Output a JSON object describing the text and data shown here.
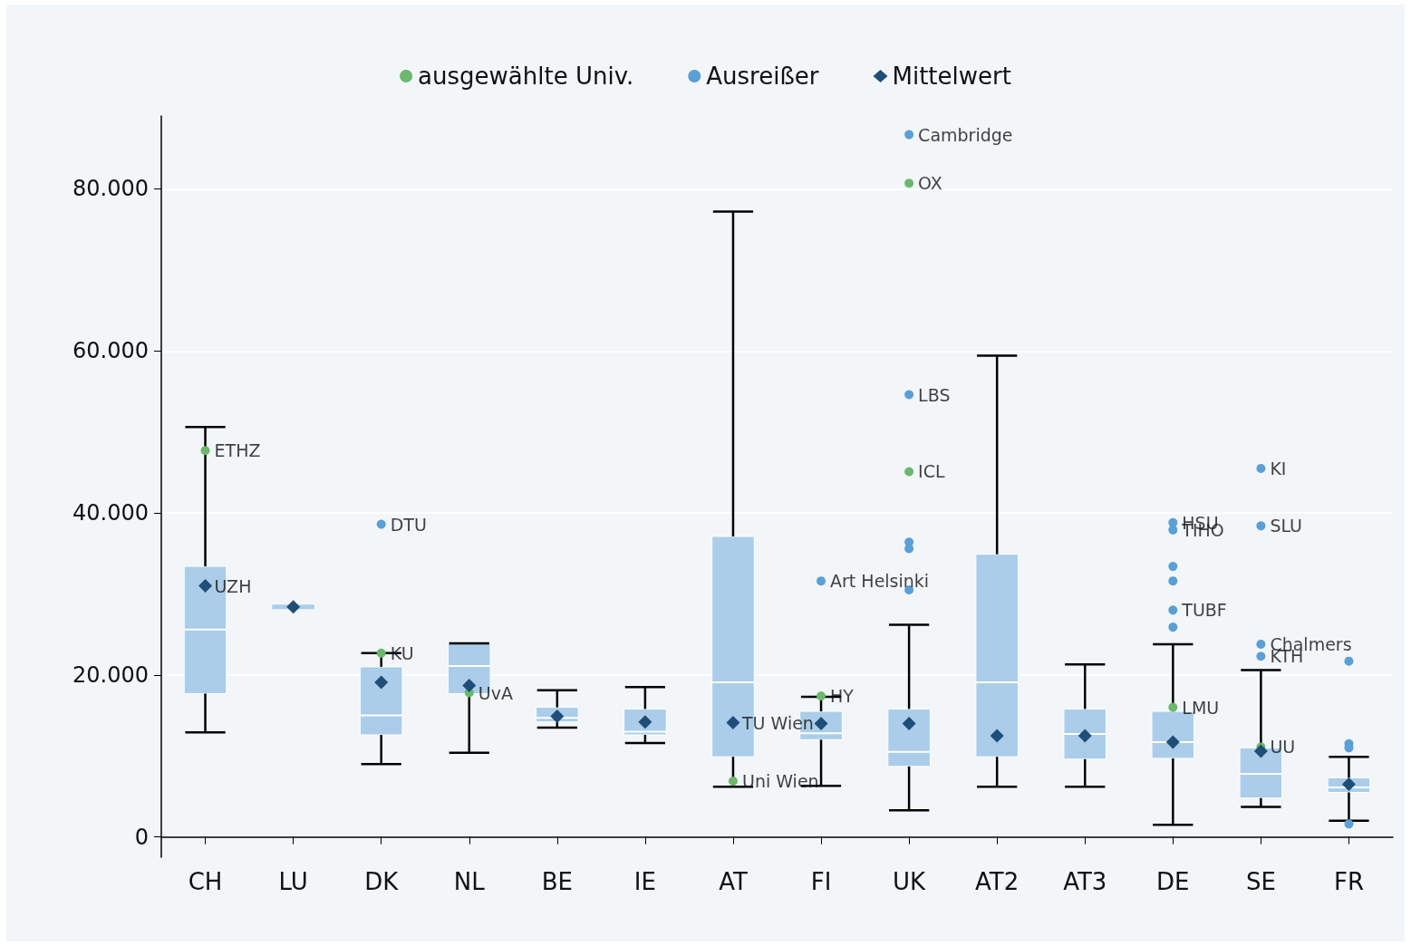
{
  "chart_data": {
    "type": "box",
    "categories": [
      "CH",
      "LU",
      "DK",
      "NL",
      "BE",
      "IE",
      "AT",
      "FI",
      "UK",
      "AT2",
      "AT3",
      "DE",
      "SE",
      "FR"
    ],
    "ylim": [
      -2500,
      89000
    ],
    "yticks": [
      0,
      {
        "value": 20000,
        "label": "20.000"
      },
      {
        "value": 40000,
        "label": "40.000"
      },
      {
        "value": 60000,
        "label": "60.000"
      },
      {
        "value": 80000,
        "label": "80.000"
      }
    ],
    "grid": "y",
    "legend": "top",
    "series": [
      {
        "type": "box",
        "color": "#abcde9",
        "boxes": [
          {
            "low": 12900,
            "q1": 17700,
            "median": 25600,
            "q3": 33400,
            "high": 50600
          },
          {
            "low": 28400,
            "q1": 28400,
            "median": 28400,
            "q3": 28400,
            "high": 28400
          },
          {
            "low": 9000,
            "q1": 12600,
            "median": 15000,
            "q3": 21000,
            "high": 22700
          },
          {
            "low": 10400,
            "q1": 17700,
            "median": 21100,
            "q3": 23900,
            "high": 23900
          },
          {
            "low": 13500,
            "q1": 14200,
            "median": 14700,
            "q3": 16000,
            "high": 18100
          },
          {
            "low": 11600,
            "q1": 12600,
            "median": 13000,
            "q3": 15800,
            "high": 18500
          },
          {
            "low": 6200,
            "q1": 9900,
            "median": 19100,
            "q3": 37100,
            "high": 77200
          },
          {
            "low": 6300,
            "q1": 12000,
            "median": 12800,
            "q3": 15500,
            "high": 17300
          },
          {
            "low": 3300,
            "q1": 8700,
            "median": 10500,
            "q3": 15800,
            "high": 26200
          },
          {
            "low": 6200,
            "q1": 9900,
            "median": 19100,
            "q3": 34900,
            "high": 59400
          },
          {
            "low": 6200,
            "q1": 9600,
            "median": 12700,
            "q3": 15800,
            "high": 21300
          },
          {
            "low": 1500,
            "q1": 9700,
            "median": 11700,
            "q3": 15500,
            "high": 23800
          },
          {
            "low": 3700,
            "q1": 4800,
            "median": 7800,
            "q3": 11000,
            "high": 20600
          },
          {
            "low": 2000,
            "q1": 5500,
            "median": 6100,
            "q3": 7300,
            "high": 9900
          }
        ]
      },
      {
        "type": "scatter",
        "name": "ausgewählte Univ.",
        "color": "#6cb86c",
        "marker": "circle",
        "x": [
          "CH",
          "DK",
          "NL",
          "AT",
          "FI",
          "UK",
          "UK",
          "DE",
          "SE"
        ],
        "values": [
          47700,
          22700,
          17800,
          6900,
          17400,
          80700,
          45100,
          16000,
          11100
        ]
      },
      {
        "type": "scatter",
        "name": "Ausreißer",
        "color": "#5a9fd6",
        "marker": "circle",
        "x": [
          "DK",
          "FI",
          "UK",
          "UK",
          "UK",
          "UK",
          "UK",
          "DE",
          "DE",
          "DE",
          "DE",
          "DE",
          "DE",
          "SE",
          "SE",
          "SE",
          "SE",
          "FR",
          "FR",
          "FR",
          "FR"
        ],
        "values": [
          38600,
          31600,
          86700,
          54600,
          36400,
          35600,
          30500,
          38800,
          37900,
          33400,
          31600,
          28000,
          25900,
          45500,
          38400,
          23800,
          22300,
          21700,
          11500,
          11000,
          1600
        ]
      },
      {
        "type": "scatter",
        "name": "Mittelwert",
        "color": "#1f4e79",
        "marker": "diamond",
        "x": [
          "CH",
          "LU",
          "DK",
          "NL",
          "BE",
          "IE",
          "AT",
          "FI",
          "UK",
          "AT2",
          "AT3",
          "DE",
          "SE",
          "FR"
        ],
        "values": [
          31000,
          28400,
          19100,
          18700,
          14900,
          14200,
          14100,
          14000,
          14000,
          12500,
          12500,
          11700,
          10600,
          6500
        ]
      }
    ],
    "annotations": [
      {
        "text": "ETHZ",
        "x": "CH",
        "y": 47700
      },
      {
        "text": "UZH",
        "x": "CH",
        "y": 31000
      },
      {
        "text": "DTU",
        "x": "DK",
        "y": 38600
      },
      {
        "text": "KU",
        "x": "DK",
        "y": 22700
      },
      {
        "text": "UvA",
        "x": "NL",
        "y": 17800
      },
      {
        "text": "TU Wien",
        "x": "AT",
        "y": 14100
      },
      {
        "text": "Uni Wien",
        "x": "AT",
        "y": 6900
      },
      {
        "text": "HY",
        "x": "FI",
        "y": 17400
      },
      {
        "text": "Art Helsinki",
        "x": "FI",
        "y": 31600
      },
      {
        "text": "Cambridge",
        "x": "UK",
        "y": 86700
      },
      {
        "text": "OX",
        "x": "UK",
        "y": 80700
      },
      {
        "text": "LBS",
        "x": "UK",
        "y": 54600
      },
      {
        "text": "ICL",
        "x": "UK",
        "y": 45100
      },
      {
        "text": "HSU",
        "x": "DE",
        "y": 38800
      },
      {
        "text": "TIHO",
        "x": "DE",
        "y": 37900
      },
      {
        "text": "TUBF",
        "x": "DE",
        "y": 28000
      },
      {
        "text": "LMU",
        "x": "DE",
        "y": 16000
      },
      {
        "text": "KI",
        "x": "SE",
        "y": 45500
      },
      {
        "text": "SLU",
        "x": "SE",
        "y": 38400
      },
      {
        "text": "Chalmers",
        "x": "SE",
        "y": 23800
      },
      {
        "text": "KTH",
        "x": "SE",
        "y": 22300
      },
      {
        "text": "UU",
        "x": "SE",
        "y": 11100
      }
    ]
  }
}
